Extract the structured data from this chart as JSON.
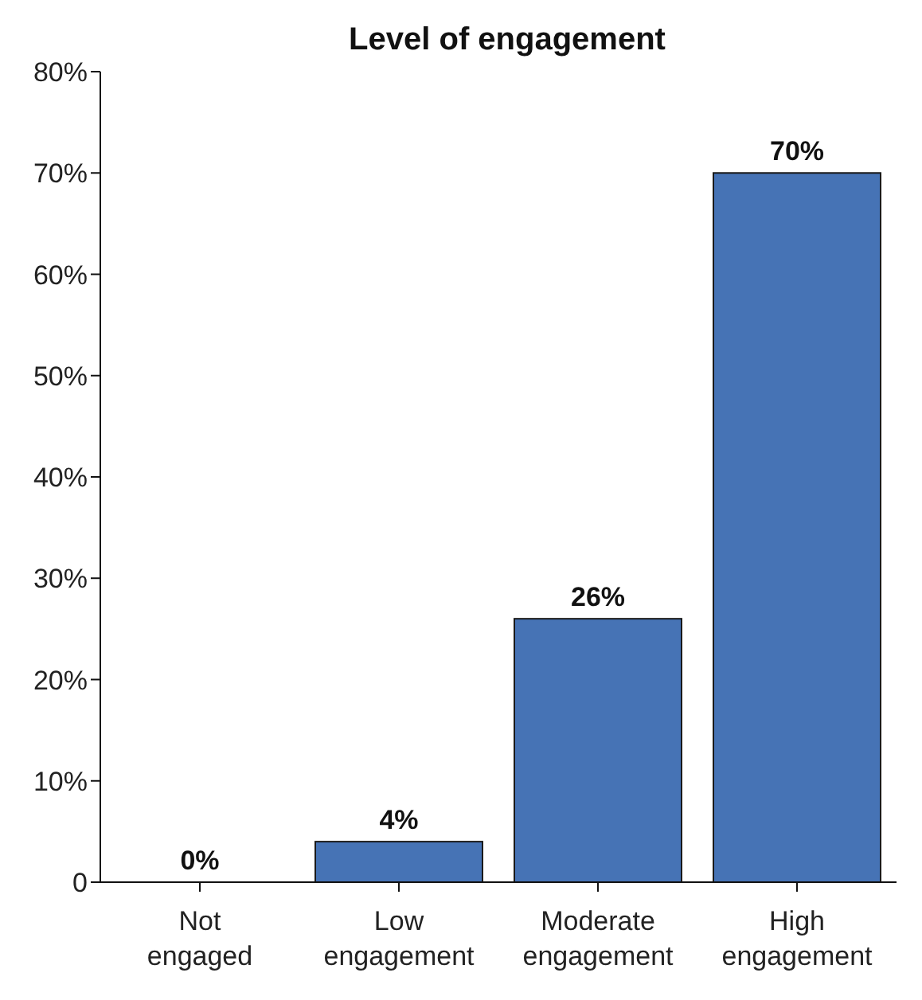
{
  "chart_data": {
    "type": "bar",
    "title": "Level of engagement",
    "categories": [
      "Not engaged",
      "Low engagement",
      "Moderate engagement",
      "High engagement"
    ],
    "values": [
      0,
      4,
      26,
      70
    ],
    "value_labels": [
      "0%",
      "4%",
      "26%",
      "70%"
    ],
    "color": "#4673b5",
    "ylim": [
      0,
      80
    ],
    "yticks": [
      0,
      {
        "value": 10,
        "label": "10%"
      },
      {
        "value": 20,
        "label": "20%"
      },
      {
        "value": 30,
        "label": "30%"
      },
      {
        "value": 40,
        "label": "40%"
      },
      {
        "value": 50,
        "label": "50%"
      },
      {
        "value": 60,
        "label": "60%"
      },
      {
        "value": 70,
        "label": "70%"
      },
      {
        "value": 80,
        "label": "80%"
      }
    ],
    "grid": false,
    "legend": false
  }
}
